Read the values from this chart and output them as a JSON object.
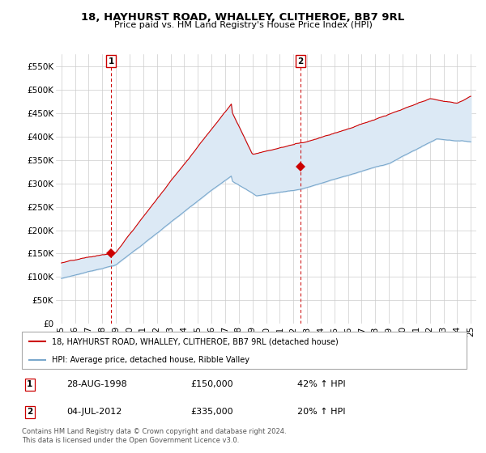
{
  "title": "18, HAYHURST ROAD, WHALLEY, CLITHEROE, BB7 9RL",
  "subtitle": "Price paid vs. HM Land Registry's House Price Index (HPI)",
  "yticks": [
    0,
    50000,
    100000,
    150000,
    200000,
    250000,
    300000,
    350000,
    400000,
    450000,
    500000,
    550000
  ],
  "ytick_labels": [
    "£0",
    "£50K",
    "£100K",
    "£150K",
    "£200K",
    "£250K",
    "£300K",
    "£350K",
    "£400K",
    "£450K",
    "£500K",
    "£550K"
  ],
  "ylim": [
    0,
    575000
  ],
  "sale1": {
    "date_num": 1998.65,
    "price": 150000,
    "label": "1",
    "date_str": "28-AUG-1998",
    "pct": "42% ↑ HPI"
  },
  "sale2": {
    "date_num": 2012.5,
    "price": 335000,
    "label": "2",
    "date_str": "04-JUL-2012",
    "pct": "20% ↑ HPI"
  },
  "red_color": "#cc0000",
  "blue_color": "#7aa8cc",
  "fill_color": "#dce9f5",
  "marker_color": "#cc0000",
  "legend_label_red": "18, HAYHURST ROAD, WHALLEY, CLITHEROE, BB7 9RL (detached house)",
  "legend_label_blue": "HPI: Average price, detached house, Ribble Valley",
  "footer": "Contains HM Land Registry data © Crown copyright and database right 2024.\nThis data is licensed under the Open Government Licence v3.0.",
  "xtick_years": [
    1995,
    1996,
    1997,
    1998,
    1999,
    2000,
    2001,
    2002,
    2003,
    2004,
    2005,
    2006,
    2007,
    2008,
    2009,
    2010,
    2011,
    2012,
    2013,
    2014,
    2015,
    2016,
    2017,
    2018,
    2019,
    2020,
    2021,
    2022,
    2023,
    2024,
    2025
  ],
  "xtick_labels": [
    "95",
    "96",
    "97",
    "98",
    "99",
    "00",
    "01",
    "02",
    "03",
    "04",
    "05",
    "06",
    "07",
    "08",
    "09",
    "10",
    "11",
    "12",
    "13",
    "14",
    "15",
    "16",
    "17",
    "18",
    "19",
    "20",
    "21",
    "22",
    "23",
    "24",
    "25"
  ],
  "xmin": 1994.6,
  "xmax": 2025.4
}
